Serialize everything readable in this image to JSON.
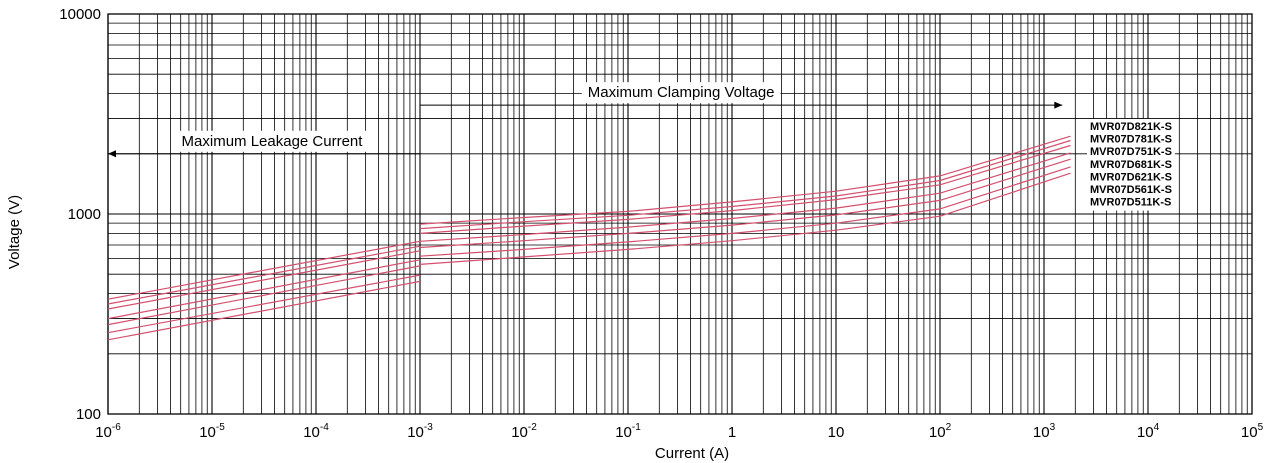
{
  "chart_data": {
    "type": "line",
    "title": "",
    "xlabel": "Current (A)",
    "ylabel": "Voltage (V)",
    "x_scale": "log",
    "y_scale": "log",
    "xlim": [
      1e-06,
      100000
    ],
    "ylim": [
      100,
      10000
    ],
    "grid": true,
    "x_ticks": [
      {
        "base": "10",
        "exp": "-6"
      },
      {
        "base": "10",
        "exp": "-5"
      },
      {
        "base": "10",
        "exp": "-4"
      },
      {
        "base": "10",
        "exp": "-3"
      },
      {
        "base": "10",
        "exp": "-2"
      },
      {
        "base": "10",
        "exp": "-1"
      },
      {
        "base": "1",
        "exp": ""
      },
      {
        "base": "10",
        "exp": ""
      },
      {
        "base": "10",
        "exp": "2"
      },
      {
        "base": "10",
        "exp": "3"
      },
      {
        "base": "10",
        "exp": "4"
      },
      {
        "base": "10",
        "exp": "5"
      }
    ],
    "y_ticks": [
      "10000",
      "1000",
      "100"
    ],
    "annotations": [
      {
        "text": "Maximum Leakage Current",
        "arrow": "left",
        "x_from": 0.001,
        "x_to": 1e-06,
        "y": 2000
      },
      {
        "text": "Maximum Clamping Voltage",
        "arrow": "right",
        "x_from": 0.001,
        "x_to": 1500,
        "y": 3500
      }
    ],
    "legend_position": "right",
    "line_color": "#d4506e",
    "series": [
      {
        "name": "MVR07D821K-S",
        "leakage": [
          {
            "x": 1e-06,
            "y": 375
          },
          {
            "x": 0.001,
            "y": 730
          }
        ],
        "clamping": [
          {
            "x": 0.001,
            "y": 890
          },
          {
            "x": 0.01,
            "y": 960
          },
          {
            "x": 0.1,
            "y": 1030
          },
          {
            "x": 1,
            "y": 1150
          },
          {
            "x": 10,
            "y": 1300
          },
          {
            "x": 100,
            "y": 1550
          },
          {
            "x": 1800,
            "y": 2450
          }
        ]
      },
      {
        "name": "MVR07D781K-S",
        "leakage": [
          {
            "x": 1e-06,
            "y": 355
          },
          {
            "x": 0.001,
            "y": 690
          }
        ],
        "clamping": [
          {
            "x": 0.001,
            "y": 845
          },
          {
            "x": 0.01,
            "y": 915
          },
          {
            "x": 0.1,
            "y": 985
          },
          {
            "x": 1,
            "y": 1090
          },
          {
            "x": 10,
            "y": 1230
          },
          {
            "x": 100,
            "y": 1470
          },
          {
            "x": 1800,
            "y": 2330
          }
        ]
      },
      {
        "name": "MVR07D751K-S",
        "leakage": [
          {
            "x": 1e-06,
            "y": 335
          },
          {
            "x": 0.001,
            "y": 655
          }
        ],
        "clamping": [
          {
            "x": 0.001,
            "y": 800
          },
          {
            "x": 0.01,
            "y": 870
          },
          {
            "x": 0.1,
            "y": 940
          },
          {
            "x": 1,
            "y": 1040
          },
          {
            "x": 10,
            "y": 1180
          },
          {
            "x": 100,
            "y": 1400
          },
          {
            "x": 1800,
            "y": 2200
          }
        ]
      },
      {
        "name": "MVR07D681K-S",
        "leakage": [
          {
            "x": 1e-06,
            "y": 300
          },
          {
            "x": 0.001,
            "y": 590
          }
        ],
        "clamping": [
          {
            "x": 0.001,
            "y": 730
          },
          {
            "x": 0.01,
            "y": 790
          },
          {
            "x": 0.1,
            "y": 860
          },
          {
            "x": 1,
            "y": 950
          },
          {
            "x": 10,
            "y": 1070
          },
          {
            "x": 100,
            "y": 1270
          },
          {
            "x": 1800,
            "y": 2020
          }
        ]
      },
      {
        "name": "MVR07D621K-S",
        "leakage": [
          {
            "x": 1e-06,
            "y": 280
          },
          {
            "x": 0.001,
            "y": 550
          }
        ],
        "clamping": [
          {
            "x": 0.001,
            "y": 680
          },
          {
            "x": 0.01,
            "y": 735
          },
          {
            "x": 0.1,
            "y": 800
          },
          {
            "x": 1,
            "y": 880
          },
          {
            "x": 10,
            "y": 990
          },
          {
            "x": 100,
            "y": 1170
          },
          {
            "x": 1800,
            "y": 1880
          }
        ]
      },
      {
        "name": "MVR07D561K-S",
        "leakage": [
          {
            "x": 1e-06,
            "y": 255
          },
          {
            "x": 0.001,
            "y": 495
          }
        ],
        "clamping": [
          {
            "x": 0.001,
            "y": 615
          },
          {
            "x": 0.01,
            "y": 665
          },
          {
            "x": 0.1,
            "y": 725
          },
          {
            "x": 1,
            "y": 800
          },
          {
            "x": 10,
            "y": 900
          },
          {
            "x": 100,
            "y": 1060
          },
          {
            "x": 1800,
            "y": 1720
          }
        ]
      },
      {
        "name": "MVR07D511K-S",
        "leakage": [
          {
            "x": 1e-06,
            "y": 235
          },
          {
            "x": 0.001,
            "y": 460
          }
        ],
        "clamping": [
          {
            "x": 0.001,
            "y": 560
          },
          {
            "x": 0.01,
            "y": 610
          },
          {
            "x": 0.1,
            "y": 665
          },
          {
            "x": 1,
            "y": 735
          },
          {
            "x": 10,
            "y": 830
          },
          {
            "x": 100,
            "y": 975
          },
          {
            "x": 1800,
            "y": 1600
          }
        ]
      }
    ]
  }
}
